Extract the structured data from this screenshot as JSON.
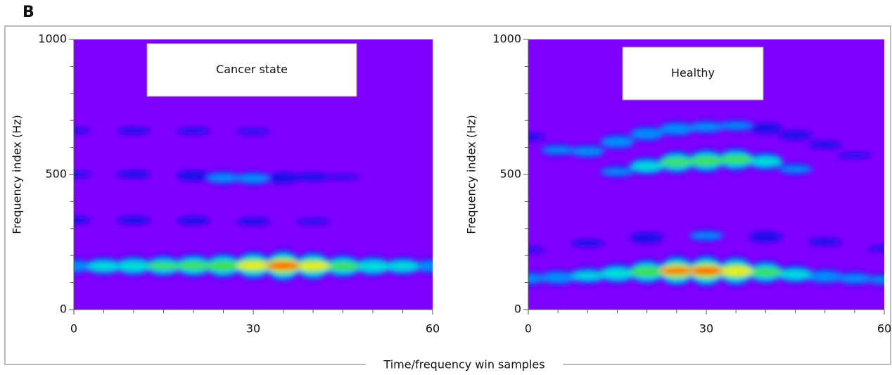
{
  "figure_label": "B",
  "xlabel": "Time/frequency win samples",
  "chart_data": [
    {
      "type": "spectrogram",
      "annotation": "Cancer state",
      "ylabel": "Frequency index (Hz)",
      "background": "#8000ff",
      "xlim": [
        0,
        60
      ],
      "xticks": [
        0,
        30,
        60
      ],
      "xminor_ticks": [
        5,
        10,
        15,
        20,
        25,
        35,
        40,
        45,
        50,
        55
      ],
      "ylim": [
        0,
        1000
      ],
      "yticks": [
        0,
        500,
        1000
      ],
      "yminor_ticks": [
        100,
        200,
        300,
        400,
        600,
        700,
        800,
        900
      ],
      "ridges": [
        {
          "x": [
            0,
            5,
            10,
            15,
            20,
            25,
            30,
            35,
            40,
            45,
            50,
            55,
            60
          ],
          "y": [
            160,
            160,
            161,
            161,
            162,
            162,
            163,
            162,
            161,
            160,
            160,
            160,
            160
          ],
          "intensity": [
            0.45,
            0.55,
            0.6,
            0.65,
            0.7,
            0.75,
            0.85,
            0.95,
            0.85,
            0.7,
            0.6,
            0.55,
            0.45
          ]
        },
        {
          "x": [
            0,
            10,
            20,
            30,
            40,
            45
          ],
          "y": [
            330,
            330,
            328,
            325,
            325,
            325
          ],
          "intensity": [
            0.2,
            0.22,
            0.22,
            0.2,
            0.15,
            0.1
          ]
        },
        {
          "x": [
            0,
            10,
            20,
            25,
            30,
            35,
            40,
            45
          ],
          "y": [
            500,
            500,
            495,
            487,
            485,
            487,
            490,
            490
          ],
          "intensity": [
            0.18,
            0.22,
            0.3,
            0.4,
            0.4,
            0.3,
            0.22,
            0.12
          ]
        },
        {
          "x": [
            0,
            10,
            20,
            30,
            35
          ],
          "y": [
            661,
            661,
            660,
            658,
            658
          ],
          "intensity": [
            0.15,
            0.18,
            0.17,
            0.15,
            0.1
          ]
        }
      ]
    },
    {
      "type": "spectrogram",
      "annotation": "Healthy",
      "ylabel": "Frequency index (Hz)",
      "background": "#8000ff",
      "xlim": [
        0,
        60
      ],
      "xticks": [
        0,
        30,
        60
      ],
      "xminor_ticks": [
        5,
        10,
        15,
        20,
        25,
        35,
        40,
        45,
        50,
        55
      ],
      "ylim": [
        0,
        1000
      ],
      "yticks": [
        0,
        500,
        1000
      ],
      "yminor_ticks": [
        100,
        200,
        300,
        400,
        600,
        700,
        800,
        900
      ],
      "ridges": [
        {
          "x": [
            0,
            5,
            10,
            15,
            20,
            25,
            30,
            35,
            40,
            45,
            50,
            55,
            60
          ],
          "y": [
            115,
            118,
            125,
            133,
            140,
            143,
            143,
            142,
            138,
            130,
            122,
            115,
            110
          ],
          "intensity": [
            0.4,
            0.45,
            0.5,
            0.6,
            0.75,
            0.92,
            0.95,
            0.88,
            0.7,
            0.55,
            0.45,
            0.4,
            0.35
          ]
        },
        {
          "x": [
            0,
            10,
            20,
            30,
            40,
            50,
            60
          ],
          "y": [
            220,
            245,
            265,
            273,
            268,
            250,
            225
          ],
          "intensity": [
            0.15,
            0.2,
            0.3,
            0.35,
            0.3,
            0.2,
            0.15
          ]
        },
        {
          "x": [
            15,
            20,
            25,
            30,
            35,
            40,
            45
          ],
          "y": [
            510,
            530,
            545,
            550,
            555,
            548,
            520
          ],
          "intensity": [
            0.35,
            0.55,
            0.7,
            0.72,
            0.7,
            0.55,
            0.35
          ]
        },
        {
          "x": [
            0,
            5,
            10,
            15,
            20,
            25,
            30,
            35,
            40,
            45,
            50,
            55
          ],
          "y": [
            638,
            590,
            585,
            620,
            650,
            668,
            675,
            680,
            670,
            645,
            610,
            570
          ],
          "intensity": [
            0.2,
            0.35,
            0.4,
            0.45,
            0.45,
            0.45,
            0.4,
            0.35,
            0.3,
            0.25,
            0.2,
            0.15
          ]
        }
      ]
    }
  ]
}
